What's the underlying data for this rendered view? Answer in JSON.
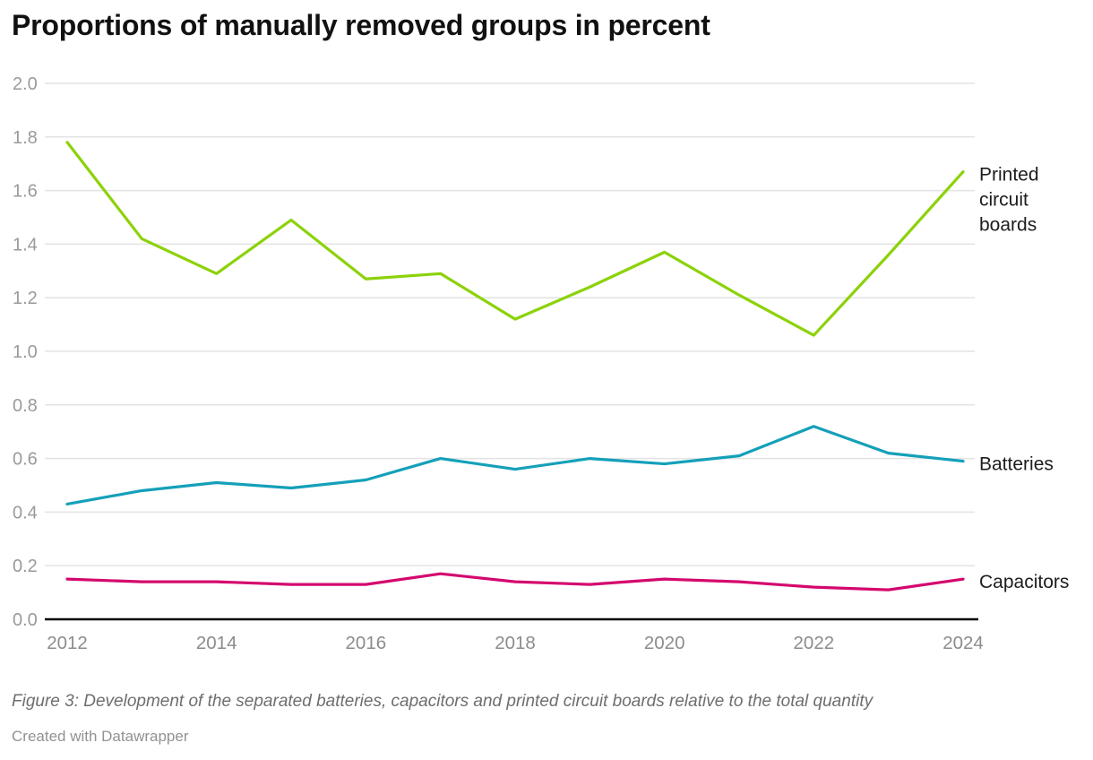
{
  "title": "Proportions of manually removed groups in percent",
  "caption": "Figure 3: Development of the separated batteries, capacitors and printed circuit boards relative to the total quantity",
  "attribution": "Created with Datawrapper",
  "colors": {
    "background": "#ffffff",
    "title_text": "#111111",
    "grid_line": "#e3e3e3",
    "axis_line": "#000000",
    "y_tick_text": "#9a9a9a",
    "x_tick_text": "#8c8c8c",
    "series_label_text": "#1d1d1d",
    "caption_text": "#6e6e6e",
    "attribution_text": "#929292",
    "printed_circuit_boards": "#8cd20a",
    "batteries": "#14a0b9",
    "capacitors": "#d4086e"
  },
  "chart_data": {
    "type": "line",
    "title": "Proportions of manually removed groups in percent",
    "xlabel": "",
    "ylabel": "",
    "x": [
      2012,
      2013,
      2014,
      2015,
      2016,
      2017,
      2018,
      2019,
      2020,
      2021,
      2022,
      2023,
      2024
    ],
    "series": [
      {
        "name": "Printed circuit boards",
        "label_lines": [
          "Printed",
          "circuit",
          "boards"
        ],
        "color": "#8cd20a",
        "values": [
          1.78,
          1.42,
          1.29,
          1.49,
          1.27,
          1.29,
          1.12,
          1.24,
          1.37,
          1.21,
          1.06,
          1.36,
          1.67
        ]
      },
      {
        "name": "Batteries",
        "label_lines": [
          "Batteries"
        ],
        "color": "#14a0b9",
        "values": [
          0.43,
          0.48,
          0.51,
          0.49,
          0.52,
          0.6,
          0.56,
          0.6,
          0.58,
          0.61,
          0.72,
          0.62,
          0.59
        ]
      },
      {
        "name": "Capacitors",
        "label_lines": [
          "Capacitors"
        ],
        "color": "#d4086e",
        "values": [
          0.15,
          0.14,
          0.14,
          0.13,
          0.13,
          0.17,
          0.14,
          0.13,
          0.15,
          0.14,
          0.12,
          0.11,
          0.15
        ]
      }
    ],
    "xlim": [
      2012,
      2024
    ],
    "ylim": [
      0.0,
      2.0
    ],
    "yticks": [
      "0.0",
      "0.2",
      "0.4",
      "0.6",
      "0.8",
      "1.0",
      "1.2",
      "1.4",
      "1.6",
      "1.8",
      "2.0"
    ],
    "xticks": [
      "2012",
      "2014",
      "2016",
      "2018",
      "2020",
      "2022",
      "2024"
    ],
    "grid": true,
    "legend_position": "labels-at-line-ends-right"
  }
}
